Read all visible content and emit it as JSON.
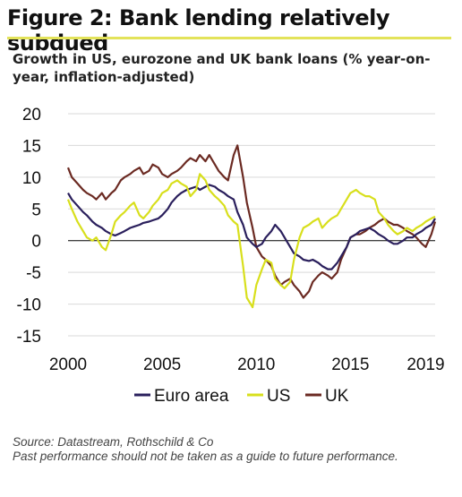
{
  "title": "Figure 2: Bank lending relatively subdued",
  "subtitle": "Growth in US, eurozone and UK bank loans (% year-on-year, inflation-adjusted)",
  "source": "Source: Datastream, Rothschild & Co",
  "disclaimer": "Past performance should not be taken as a guide to future performance.",
  "chart_data": {
    "type": "line",
    "ylim": [
      -15,
      20
    ],
    "yticks": [
      "20",
      "15",
      "10",
      "5",
      "0",
      "-5",
      "-10",
      "-15"
    ],
    "xlim": [
      2000,
      2019.5
    ],
    "xticks": [
      "2000",
      "2005",
      "2010",
      "2015",
      "2019"
    ],
    "xtick_values": [
      2000,
      2005,
      2010,
      2015,
      2019
    ],
    "grid": true,
    "legend_position": "bottom",
    "series": [
      {
        "name": "Euro area",
        "color": "#2a1f5c",
        "x": [
          2000.0,
          2000.2,
          2000.5,
          2000.8,
          2001.0,
          2001.3,
          2001.5,
          2001.8,
          2002.0,
          2002.3,
          2002.5,
          2002.8,
          2003.0,
          2003.3,
          2003.5,
          2003.8,
          2004.0,
          2004.3,
          2004.5,
          2004.8,
          2005.0,
          2005.3,
          2005.5,
          2005.8,
          2006.0,
          2006.3,
          2006.5,
          2006.8,
          2007.0,
          2007.3,
          2007.5,
          2007.8,
          2008.0,
          2008.3,
          2008.5,
          2008.8,
          2009.0,
          2009.3,
          2009.5,
          2009.8,
          2010.0,
          2010.3,
          2010.5,
          2010.8,
          2011.0,
          2011.3,
          2011.5,
          2011.8,
          2012.0,
          2012.3,
          2012.5,
          2012.8,
          2013.0,
          2013.3,
          2013.5,
          2013.8,
          2014.0,
          2014.3,
          2014.5,
          2014.8,
          2015.0,
          2015.3,
          2015.5,
          2015.8,
          2016.0,
          2016.3,
          2016.5,
          2016.8,
          2017.0,
          2017.3,
          2017.5,
          2017.8,
          2018.0,
          2018.3,
          2018.5,
          2018.8,
          2019.0,
          2019.3,
          2019.5
        ],
        "values": [
          7.5,
          6.5,
          5.5,
          4.5,
          4.0,
          3.0,
          2.5,
          2.0,
          1.5,
          1.0,
          0.8,
          1.2,
          1.5,
          2.0,
          2.2,
          2.5,
          2.8,
          3.0,
          3.2,
          3.5,
          4.0,
          5.0,
          6.0,
          7.0,
          7.5,
          8.0,
          8.2,
          8.5,
          8.0,
          8.5,
          8.8,
          8.5,
          8.0,
          7.5,
          7.0,
          6.5,
          4.5,
          2.5,
          0.5,
          -0.5,
          -1.0,
          -0.5,
          0.5,
          1.5,
          2.5,
          1.5,
          0.5,
          -1.0,
          -2.0,
          -2.5,
          -3.0,
          -3.2,
          -3.0,
          -3.5,
          -4.0,
          -4.5,
          -4.5,
          -3.5,
          -2.5,
          -1.0,
          0.5,
          1.0,
          1.5,
          1.8,
          2.0,
          1.5,
          1.0,
          0.5,
          0.0,
          -0.5,
          -0.5,
          0.0,
          0.5,
          0.5,
          1.0,
          1.5,
          2.0,
          2.5,
          3.5
        ]
      },
      {
        "name": "US",
        "color": "#d8df1c",
        "x": [
          2000.0,
          2000.2,
          2000.5,
          2000.8,
          2001.0,
          2001.3,
          2001.5,
          2001.8,
          2002.0,
          2002.3,
          2002.5,
          2002.8,
          2003.0,
          2003.3,
          2003.5,
          2003.8,
          2004.0,
          2004.3,
          2004.5,
          2004.8,
          2005.0,
          2005.3,
          2005.5,
          2005.8,
          2006.0,
          2006.3,
          2006.5,
          2006.8,
          2007.0,
          2007.3,
          2007.5,
          2007.8,
          2008.0,
          2008.3,
          2008.5,
          2008.8,
          2009.0,
          2009.3,
          2009.5,
          2009.8,
          2010.0,
          2010.3,
          2010.5,
          2010.8,
          2011.0,
          2011.3,
          2011.5,
          2011.8,
          2012.0,
          2012.3,
          2012.5,
          2012.8,
          2013.0,
          2013.3,
          2013.5,
          2013.8,
          2014.0,
          2014.3,
          2014.5,
          2014.8,
          2015.0,
          2015.3,
          2015.5,
          2015.8,
          2016.0,
          2016.3,
          2016.5,
          2016.8,
          2017.0,
          2017.3,
          2017.5,
          2017.8,
          2018.0,
          2018.3,
          2018.5,
          2018.8,
          2019.0,
          2019.3,
          2019.5
        ],
        "values": [
          6.5,
          5.0,
          3.0,
          1.5,
          0.5,
          0.0,
          0.5,
          -1.0,
          -1.5,
          1.0,
          3.0,
          4.0,
          4.5,
          5.5,
          6.0,
          4.0,
          3.5,
          4.5,
          5.5,
          6.5,
          7.5,
          8.0,
          9.0,
          9.5,
          9.0,
          8.5,
          7.0,
          8.0,
          10.5,
          9.5,
          8.0,
          7.0,
          6.5,
          5.5,
          4.0,
          3.0,
          2.5,
          -4.0,
          -9.0,
          -10.5,
          -7.0,
          -4.5,
          -3.0,
          -3.5,
          -6.0,
          -7.0,
          -7.5,
          -6.5,
          -3.0,
          0.5,
          2.0,
          2.5,
          3.0,
          3.5,
          2.0,
          3.0,
          3.5,
          4.0,
          5.0,
          6.5,
          7.5,
          8.0,
          7.5,
          7.0,
          7.0,
          6.5,
          4.5,
          3.5,
          2.5,
          1.5,
          1.0,
          1.5,
          2.0,
          1.5,
          2.0,
          2.5,
          3.0,
          3.5,
          3.8
        ]
      },
      {
        "name": "UK",
        "color": "#6b2a22",
        "x": [
          2000.0,
          2000.2,
          2000.5,
          2000.8,
          2001.0,
          2001.3,
          2001.5,
          2001.8,
          2002.0,
          2002.3,
          2002.5,
          2002.8,
          2003.0,
          2003.3,
          2003.5,
          2003.8,
          2004.0,
          2004.3,
          2004.5,
          2004.8,
          2005.0,
          2005.3,
          2005.5,
          2005.8,
          2006.0,
          2006.3,
          2006.5,
          2006.8,
          2007.0,
          2007.3,
          2007.5,
          2007.8,
          2008.0,
          2008.3,
          2008.5,
          2008.8,
          2009.0,
          2009.3,
          2009.5,
          2009.8,
          2010.0,
          2010.3,
          2010.5,
          2010.8,
          2011.0,
          2011.3,
          2011.5,
          2011.8,
          2012.0,
          2012.3,
          2012.5,
          2012.8,
          2013.0,
          2013.3,
          2013.5,
          2013.8,
          2014.0,
          2014.3,
          2014.5,
          2014.8,
          2015.0,
          2015.3,
          2015.5,
          2015.8,
          2016.0,
          2016.3,
          2016.5,
          2016.8,
          2017.0,
          2017.3,
          2017.5,
          2017.8,
          2018.0,
          2018.3,
          2018.5,
          2018.8,
          2019.0,
          2019.3,
          2019.5
        ],
        "values": [
          11.5,
          10.0,
          9.0,
          8.0,
          7.5,
          7.0,
          6.5,
          7.5,
          6.5,
          7.5,
          8.0,
          9.5,
          10.0,
          10.5,
          11.0,
          11.5,
          10.5,
          11.0,
          12.0,
          11.5,
          10.5,
          10.0,
          10.5,
          11.0,
          11.5,
          12.5,
          13.0,
          12.5,
          13.5,
          12.5,
          13.5,
          12.0,
          11.0,
          10.0,
          9.5,
          13.5,
          15.0,
          10.0,
          6.0,
          2.0,
          -1.0,
          -2.5,
          -3.0,
          -4.0,
          -5.5,
          -7.0,
          -6.5,
          -6.0,
          -7.0,
          -8.0,
          -9.0,
          -8.0,
          -6.5,
          -5.5,
          -5.0,
          -5.5,
          -6.0,
          -5.0,
          -3.0,
          -1.0,
          0.5,
          1.0,
          1.0,
          1.5,
          2.0,
          2.5,
          3.0,
          3.5,
          3.0,
          2.5,
          2.5,
          2.0,
          1.5,
          1.0,
          0.5,
          -0.5,
          -1.0,
          1.0,
          3.0
        ]
      }
    ]
  }
}
